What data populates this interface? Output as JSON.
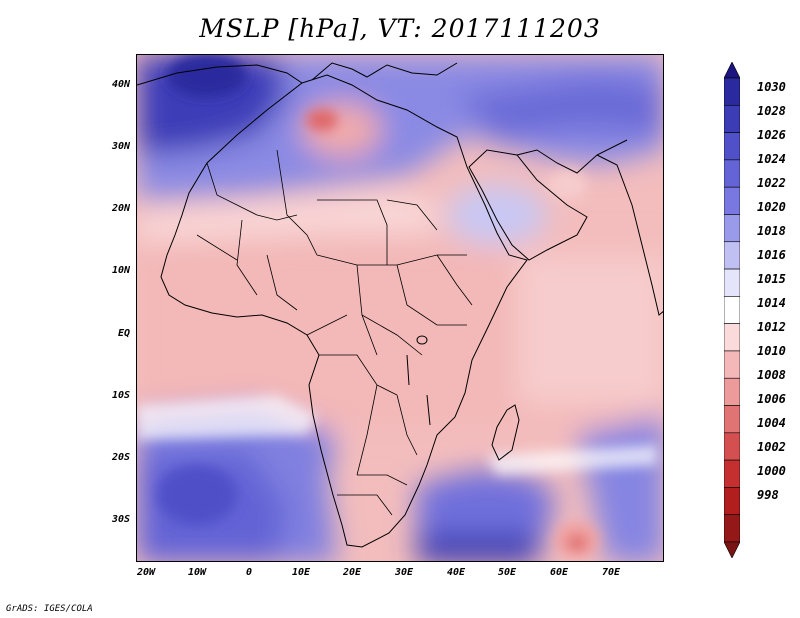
{
  "title": "MSLP [hPa], VT: 2017111203",
  "map": {
    "lat_labels": [
      "40N",
      "30N",
      "20N",
      "10N",
      "EQ",
      "10S",
      "20S",
      "30S"
    ],
    "lon_labels": [
      "20W",
      "10W",
      "0",
      "10E",
      "20E",
      "30E",
      "40E",
      "50E",
      "60E",
      "70E"
    ],
    "lat_range": [
      -36.5,
      44.5
    ],
    "lon_range": [
      -21.5,
      77
    ]
  },
  "colorbar": {
    "levels": [
      "1030",
      "1028",
      "1026",
      "1024",
      "1022",
      "1020",
      "1018",
      "1016",
      "1015",
      "1014",
      "1012",
      "1010",
      "1008",
      "1006",
      "1004",
      "1002",
      "1000",
      "998"
    ],
    "colors": [
      "#1c1480",
      "#2a2a9e",
      "#3c3cb5",
      "#5050c8",
      "#6464d6",
      "#7878e0",
      "#9a9aea",
      "#c0c0f2",
      "#e4e4fa",
      "#ffffff",
      "#fadada",
      "#f4b8b8",
      "#ec9a9a",
      "#e07474",
      "#d45050",
      "#c43030",
      "#b01e1e",
      "#951818",
      "#7a1414"
    ]
  },
  "credit": "GrADS: IGES/COLA"
}
